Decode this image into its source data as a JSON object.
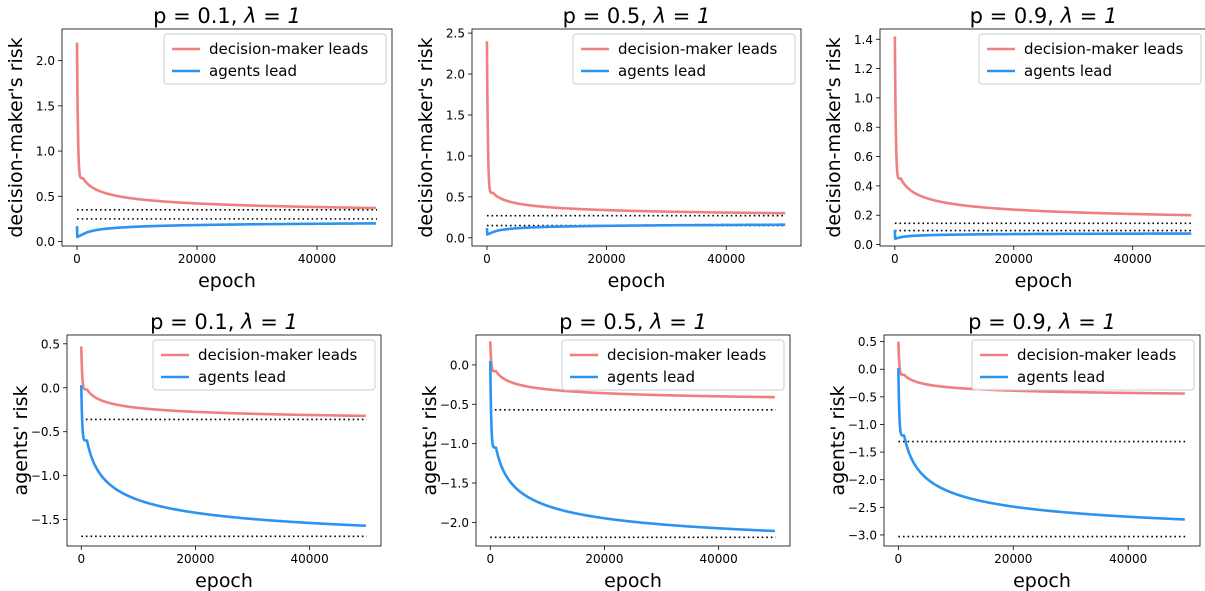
{
  "colors": {
    "decision_maker": "#f08080",
    "agents": "#2b93f0",
    "reference": "#000000"
  },
  "chart_data": [
    {
      "type": "line",
      "title_prefix": "p = 0.1, ",
      "title_suffix": "λ = 1",
      "xlabel": "epoch",
      "ylabel": "decision-maker's risk",
      "xlim": [
        -2500,
        52500
      ],
      "ylim": [
        -0.05,
        2.35
      ],
      "xticks": [
        0,
        20000,
        40000
      ],
      "xtick_labels": [
        "0",
        "20000",
        "40000"
      ],
      "yticks": [
        0.0,
        0.5,
        1.0,
        1.5,
        2.0
      ],
      "ytick_labels": [
        "0.0",
        "0.5",
        "1.0",
        "1.5",
        "2.0"
      ],
      "legend": "top-right",
      "grid": false,
      "series": [
        {
          "name": "decision-maker leads",
          "start": 2.2,
          "at_1000": 0.7,
          "end": 0.37,
          "min": 0.35
        },
        {
          "name": "agents lead",
          "start": 0.17,
          "at_1000": 0.08,
          "end": 0.2,
          "min": 0.05
        }
      ],
      "hlines": [
        0.35,
        0.25
      ],
      "hline_span": [
        0,
        50000
      ]
    },
    {
      "type": "line",
      "title_prefix": "p = 0.5, ",
      "title_suffix": "λ = 1",
      "xlabel": "epoch",
      "ylabel": "decision-maker's risk",
      "xlim": [
        -2500,
        52500
      ],
      "ylim": [
        -0.1,
        2.55
      ],
      "xticks": [
        0,
        20000,
        40000
      ],
      "xtick_labels": [
        "0",
        "20000",
        "40000"
      ],
      "yticks": [
        0.0,
        0.5,
        1.0,
        1.5,
        2.0,
        2.5
      ],
      "ytick_labels": [
        "0.0",
        "0.5",
        "1.0",
        "1.5",
        "2.0",
        "2.5"
      ],
      "legend": "top-right",
      "grid": false,
      "series": [
        {
          "name": "decision-maker leads",
          "start": 2.4,
          "at_1000": 0.55,
          "end": 0.3,
          "min": 0.28
        },
        {
          "name": "agents lead",
          "start": 0.12,
          "at_1000": 0.07,
          "end": 0.16,
          "min": 0.04
        }
      ],
      "hlines": [
        0.27,
        0.15
      ],
      "hline_span": [
        0,
        50000
      ]
    },
    {
      "type": "line",
      "title_prefix": "p = 0.9, ",
      "title_suffix": "λ = 1",
      "xlabel": "epoch",
      "ylabel": "decision-maker's risk",
      "xlim": [
        -2500,
        52500
      ],
      "ylim": [
        -0.01,
        1.47
      ],
      "xticks": [
        0,
        20000,
        40000
      ],
      "xtick_labels": [
        "0",
        "20000",
        "40000"
      ],
      "yticks": [
        0.0,
        0.2,
        0.4,
        0.6,
        0.8,
        1.0,
        1.2,
        1.4
      ],
      "ytick_labels": [
        "0.0",
        "0.2",
        "0.4",
        "0.6",
        "0.8",
        "1.0",
        "1.2",
        "1.4"
      ],
      "legend": "top-right",
      "grid": false,
      "series": [
        {
          "name": "decision-maker leads",
          "start": 1.42,
          "at_1000": 0.45,
          "end": 0.2,
          "min": 0.19
        },
        {
          "name": "agents lead",
          "start": 0.1,
          "at_1000": 0.05,
          "end": 0.075,
          "min": 0.04
        }
      ],
      "hlines": [
        0.145,
        0.095
      ],
      "hline_span": [
        0,
        50000
      ]
    },
    {
      "type": "line",
      "title_prefix": "p = 0.1, ",
      "title_suffix": "λ = 1",
      "xlabel": "epoch",
      "ylabel": "agents' risk",
      "xlim": [
        -2500,
        52500
      ],
      "ylim": [
        -1.8,
        0.6
      ],
      "xticks": [
        0,
        20000,
        40000
      ],
      "xtick_labels": [
        "0",
        "20000",
        "40000"
      ],
      "yticks": [
        -1.5,
        -1.0,
        -0.5,
        0.0,
        0.5
      ],
      "ytick_labels": [
        "−1.5",
        "−1.0",
        "−0.5",
        "0.0",
        "0.5"
      ],
      "legend": "top-right",
      "grid": false,
      "series": [
        {
          "name": "decision-maker leads",
          "start": 0.47,
          "at_1000": -0.02,
          "end": -0.32
        },
        {
          "name": "agents lead",
          "start": 0.03,
          "at_1000": -0.6,
          "end": -1.57
        }
      ],
      "hlines": [
        -0.36,
        -1.69
      ],
      "hline_span": [
        0,
        50000
      ]
    },
    {
      "type": "line",
      "title_prefix": "p = 0.5, ",
      "title_suffix": "λ = 1",
      "xlabel": "epoch",
      "ylabel": "agents' risk",
      "xlim": [
        -2500,
        52500
      ],
      "ylim": [
        -2.3,
        0.38
      ],
      "xticks": [
        0,
        20000,
        40000
      ],
      "xtick_labels": [
        "0",
        "20000",
        "40000"
      ],
      "yticks": [
        -2.0,
        -1.5,
        -1.0,
        -0.5,
        0.0
      ],
      "ytick_labels": [
        "−2.0",
        "−1.5",
        "−1.0",
        "−0.5",
        "0.0"
      ],
      "legend": "top-right",
      "grid": false,
      "series": [
        {
          "name": "decision-maker leads",
          "start": 0.3,
          "at_1000": -0.08,
          "end": -0.41
        },
        {
          "name": "agents lead",
          "start": 0.05,
          "at_1000": -1.05,
          "end": -2.11
        }
      ],
      "hlines": [
        -0.57,
        -2.19
      ],
      "hline_span": [
        0,
        50000
      ]
    },
    {
      "type": "line",
      "title_prefix": "p = 0.9, ",
      "title_suffix": "λ = 1",
      "xlabel": "epoch",
      "ylabel": "agents' risk",
      "xlim": [
        -2500,
        52500
      ],
      "ylim": [
        -3.2,
        0.62
      ],
      "xticks": [
        0,
        20000,
        40000
      ],
      "xtick_labels": [
        "0",
        "20000",
        "40000"
      ],
      "yticks": [
        -3.0,
        -2.5,
        -2.0,
        -1.5,
        -1.0,
        -0.5,
        0.0,
        0.5
      ],
      "ytick_labels": [
        "−3.0",
        "−2.5",
        "−2.0",
        "−1.5",
        "−1.0",
        "−0.5",
        "0.0",
        "0.5"
      ],
      "legend": "top-right",
      "grid": false,
      "series": [
        {
          "name": "decision-maker leads",
          "start": 0.5,
          "at_1000": -0.1,
          "end": -0.44
        },
        {
          "name": "agents lead",
          "start": 0.02,
          "at_1000": -1.2,
          "end": -2.72
        }
      ],
      "hlines": [
        -1.31,
        -3.03
      ],
      "hline_span": [
        0,
        50000
      ]
    }
  ]
}
